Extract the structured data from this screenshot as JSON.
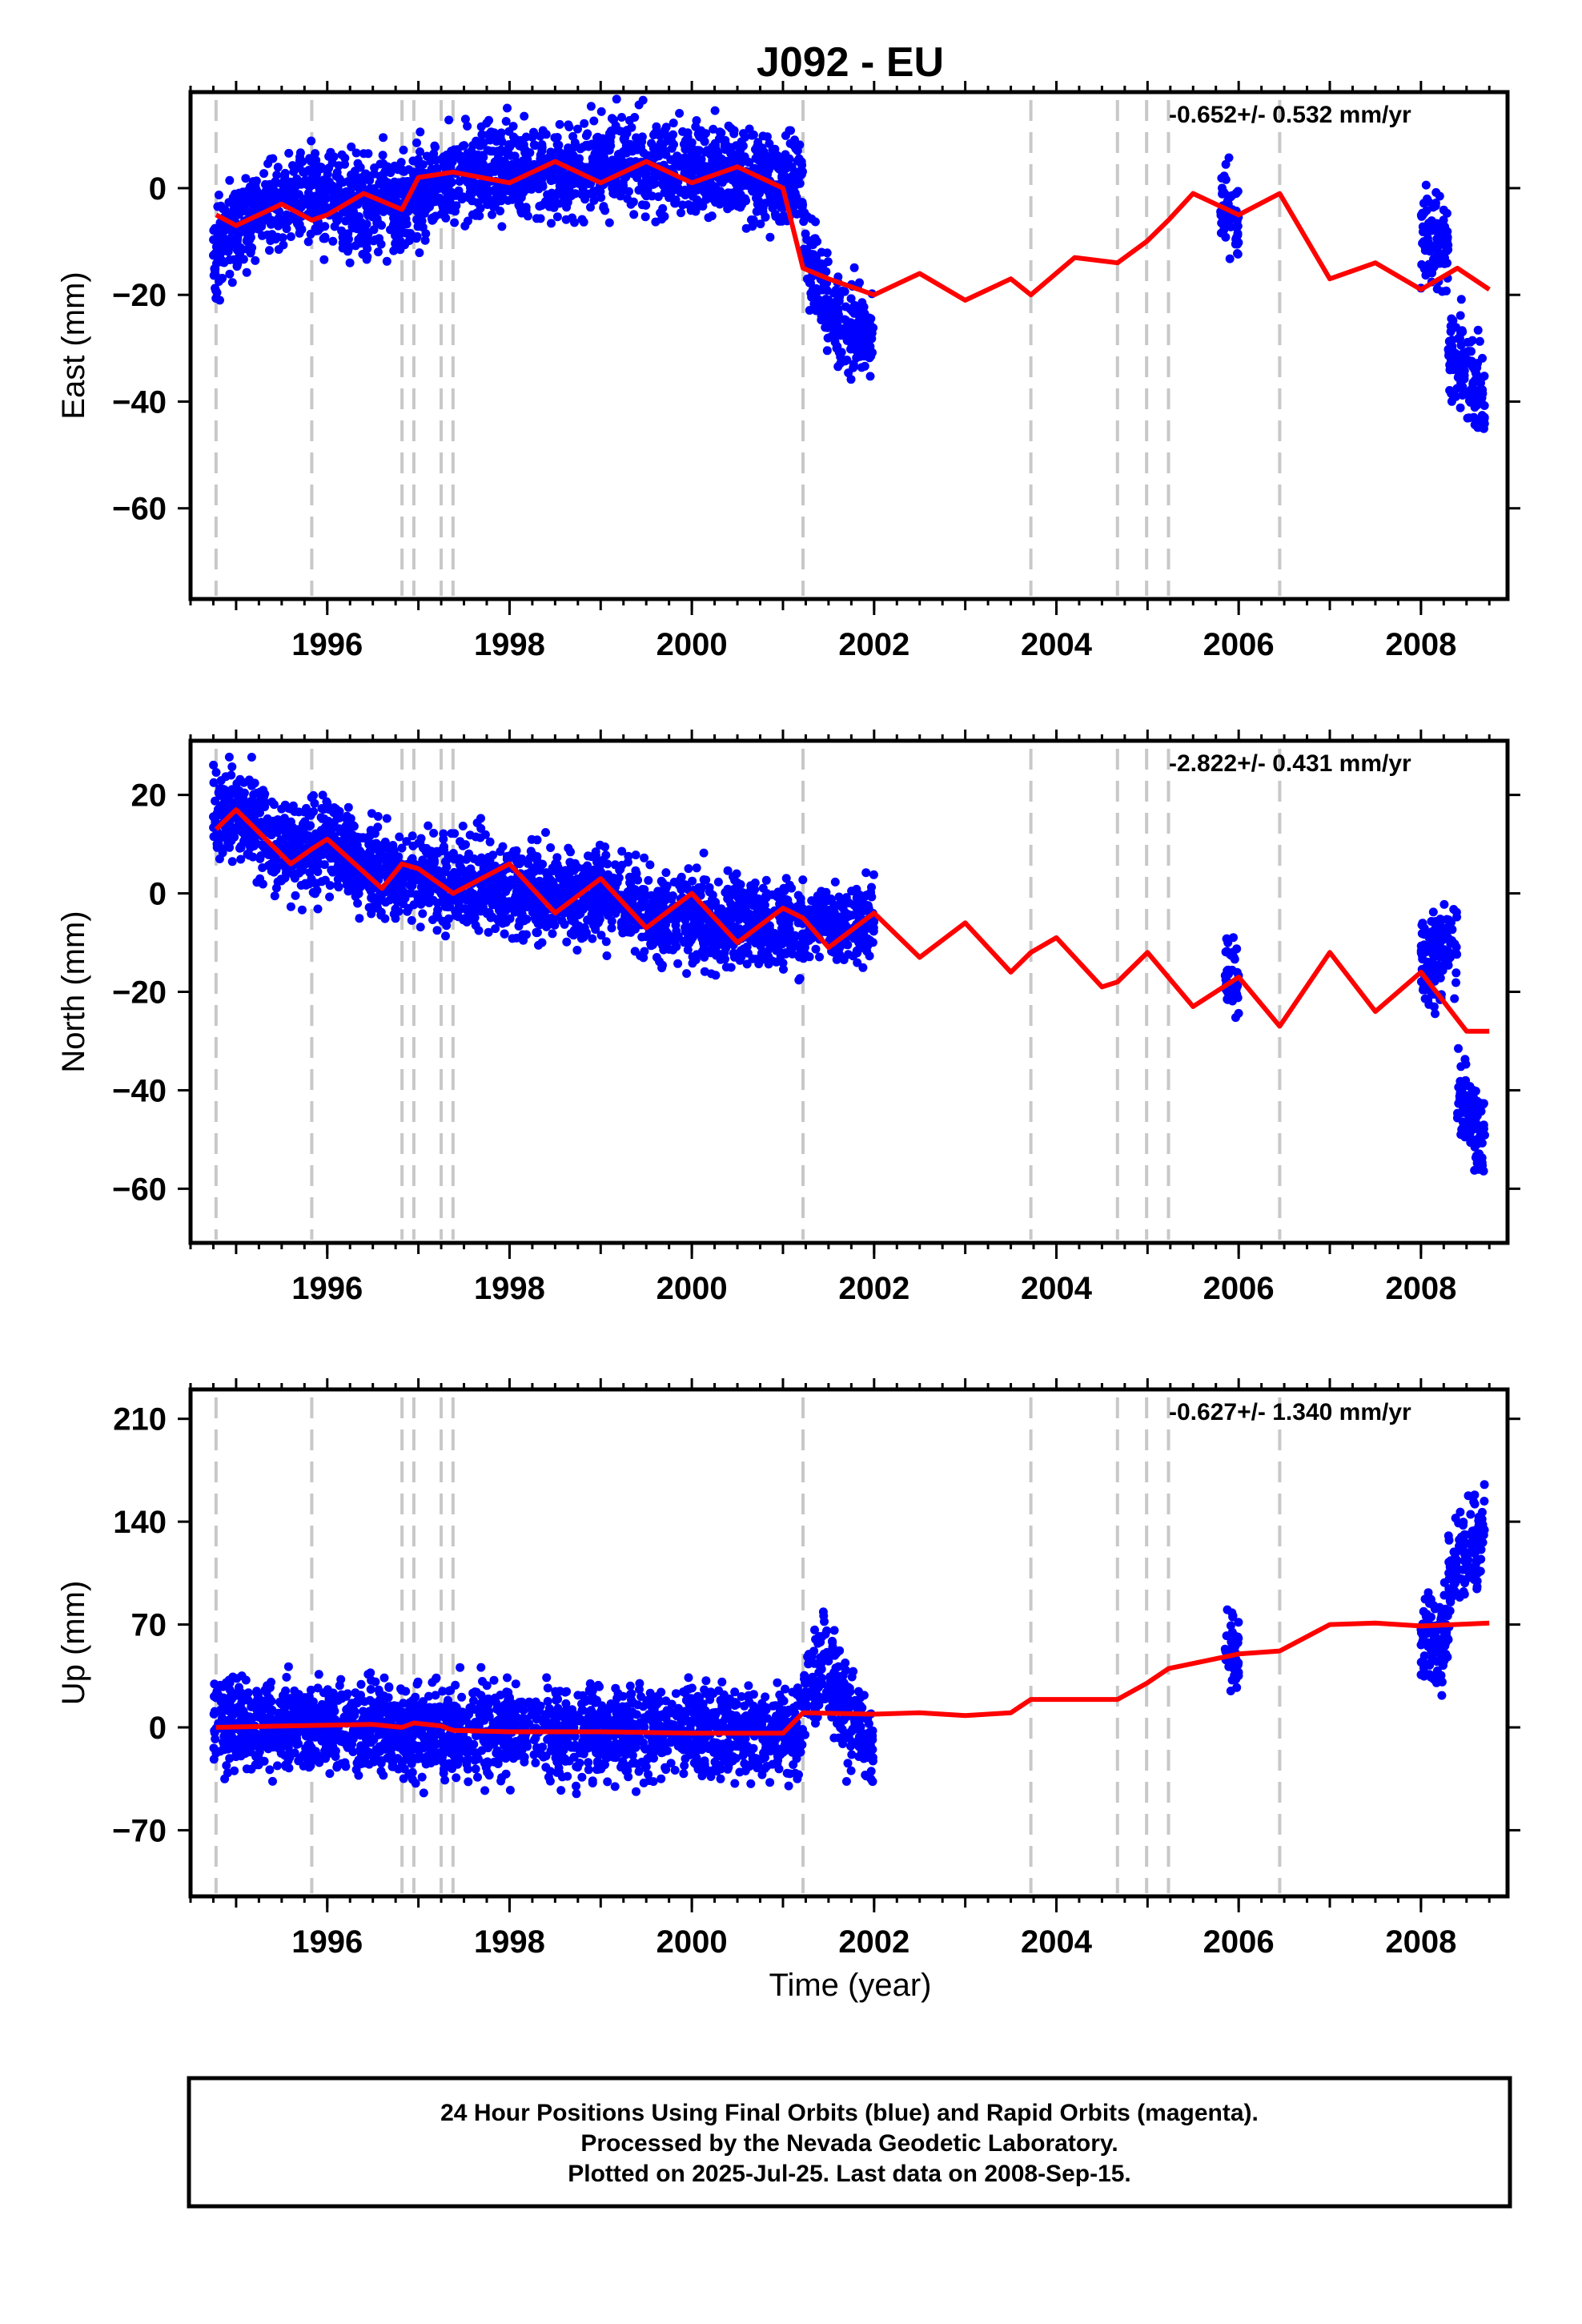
{
  "title": "J092 - EU",
  "xlabel": "Time (year)",
  "footer": [
    "24 Hour Positions Using Final Orbits (blue) and Rapid Orbits (magenta).",
    "Processed by the Nevada Geodetic Laboratory.",
    "Plotted on 2025-Jul-25. Last data on 2008-Sep-15."
  ],
  "colors": {
    "data": "#0000ff",
    "model": "#ff0000",
    "offset_lines": "#c8c8c8"
  },
  "chart_data": [
    {
      "type": "scatter",
      "ylabel": "East (mm)",
      "rate_label": "-0.652+/- 0.532 mm/yr",
      "xlim": [
        1994.5,
        2008.95
      ],
      "ylim": [
        -77,
        18
      ],
      "x_ticks": [
        1996,
        1998,
        2000,
        2002,
        2004,
        2006,
        2008
      ],
      "y_ticks": [
        0,
        -20,
        -40,
        -60
      ],
      "offset_epochs": [
        1994.78,
        1995.83,
        1996.82,
        1996.95,
        1997.25,
        1997.38,
        2001.22,
        2003.72,
        2004.67,
        2004.99,
        2005.23,
        2006.45
      ],
      "data_segments": [
        {
          "x": [
            1994.75,
            1995.25,
            1995.8,
            1996.4,
            1996.8,
            1997.3,
            1998.0,
            1998.7,
            1999.3,
            1999.8,
            2000.4,
            2001.0,
            2001.22
          ],
          "y": [
            -12,
            -4,
            -2,
            -3,
            -3,
            2,
            3,
            3,
            5,
            4,
            4,
            1,
            1
          ]
        },
        {
          "x": [
            2001.22,
            2001.5,
            2001.75,
            2002.0
          ],
          "y": [
            -10,
            -22,
            -27,
            -28
          ]
        },
        {
          "x": [
            2005.8,
            2006.0
          ],
          "y": [
            -4,
            -6
          ]
        },
        {
          "x": [
            2008.0,
            2008.3
          ],
          "y": [
            -10,
            -10
          ]
        },
        {
          "x": [
            2008.3,
            2008.7
          ],
          "y": [
            -30,
            -40
          ]
        }
      ],
      "model": {
        "x": [
          1994.78,
          1995.0,
          1995.5,
          1995.83,
          1996.0,
          1996.4,
          1996.82,
          1997.0,
          1997.38,
          1998.0,
          1998.5,
          1999.0,
          1999.5,
          2000.0,
          2000.5,
          2001.0,
          2001.22,
          2001.5,
          2002.0,
          2002.5,
          2003.0,
          2003.5,
          2003.72,
          2004.2,
          2004.67,
          2004.99,
          2005.23,
          2005.5,
          2006.0,
          2006.45,
          2007.0,
          2007.5,
          2008.0,
          2008.4,
          2008.75
        ],
        "y": [
          -5,
          -7,
          -3,
          -6,
          -5,
          -1,
          -4,
          2,
          3,
          1,
          5,
          1,
          5,
          1,
          4,
          0,
          -15,
          -17,
          -20,
          -16,
          -21,
          -17,
          -20,
          -13,
          -14,
          -10,
          -6,
          -1,
          -5,
          -1,
          -17,
          -14,
          -19,
          -15,
          -19
        ]
      }
    },
    {
      "type": "scatter",
      "ylabel": "North (mm)",
      "rate_label": "-2.822+/- 0.431 mm/yr",
      "xlim": [
        1994.5,
        2008.95
      ],
      "ylim": [
        -71,
        31
      ],
      "x_ticks": [
        1996,
        1998,
        2000,
        2002,
        2004,
        2006,
        2008
      ],
      "y_ticks": [
        20,
        0,
        -20,
        -40,
        -60
      ],
      "offset_epochs": [
        1994.78,
        1995.83,
        1996.82,
        1996.95,
        1997.25,
        1997.38,
        2001.22,
        2003.72,
        2004.67,
        2004.99,
        2005.23,
        2006.45
      ],
      "data_segments": [
        {
          "x": [
            1994.75,
            1995.2,
            1995.6,
            1996.0,
            1996.6,
            1997.2,
            1997.8,
            1998.4,
            1999.0,
            1999.6,
            2000.2,
            2000.8,
            2001.4,
            2002.0
          ],
          "y": [
            18,
            14,
            8,
            10,
            4,
            3,
            2,
            0,
            0,
            -4,
            -6,
            -6,
            -7,
            -6
          ]
        },
        {
          "x": [
            2005.85,
            2006.0
          ],
          "y": [
            -16,
            -18
          ]
        },
        {
          "x": [
            2008.0,
            2008.4
          ],
          "y": [
            -15,
            -10
          ]
        },
        {
          "x": [
            2008.4,
            2008.7
          ],
          "y": [
            -40,
            -50
          ]
        }
      ],
      "model": {
        "x": [
          1994.78,
          1995.0,
          1995.6,
          1995.83,
          1996.0,
          1996.6,
          1996.82,
          1997.0,
          1997.38,
          1998.0,
          1998.5,
          1999.0,
          1999.5,
          2000.0,
          2000.5,
          2001.0,
          2001.22,
          2001.5,
          2002.0,
          2002.5,
          2003.0,
          2003.5,
          2003.72,
          2004.0,
          2004.5,
          2004.67,
          2005.0,
          2005.5,
          2006.0,
          2006.45,
          2007.0,
          2007.5,
          2008.0,
          2008.5,
          2008.75
        ],
        "y": [
          13,
          17,
          6,
          9,
          11,
          1,
          6,
          5,
          0,
          6,
          -4,
          3,
          -7,
          0,
          -10,
          -3,
          -5,
          -11,
          -4,
          -13,
          -6,
          -16,
          -12,
          -9,
          -19,
          -18,
          -12,
          -23,
          -17,
          -27,
          -12,
          -24,
          -16,
          -28,
          -28
        ]
      }
    },
    {
      "type": "scatter",
      "ylabel": "Up (mm)",
      "rate_label": "-0.627+/- 1.340 mm/yr",
      "xlim": [
        1994.5,
        2008.95
      ],
      "ylim": [
        -115,
        230
      ],
      "x_ticks": [
        1996,
        1998,
        2000,
        2002,
        2004,
        2006,
        2008
      ],
      "y_ticks": [
        210,
        140,
        70,
        0,
        -70
      ],
      "offset_epochs": [
        1994.78,
        1995.83,
        1996.82,
        1996.95,
        1997.25,
        1997.38,
        2001.22,
        2003.72,
        2004.67,
        2004.99,
        2005.23,
        2006.45
      ],
      "data_segments": [
        {
          "x": [
            1994.75,
            1995.5,
            1996.2,
            1997.0,
            1998.0,
            1999.0,
            2000.0,
            2001.0,
            2001.22
          ],
          "y": [
            2,
            0,
            2,
            0,
            -2,
            -3,
            -3,
            -4,
            -4
          ]
        },
        {
          "x": [
            2001.22,
            2001.45,
            2001.7,
            2002.0
          ],
          "y": [
            25,
            45,
            10,
            -10
          ]
        },
        {
          "x": [
            2005.85,
            2006.0
          ],
          "y": [
            50,
            50
          ]
        },
        {
          "x": [
            2008.0,
            2008.3
          ],
          "y": [
            55,
            60
          ]
        },
        {
          "x": [
            2008.3,
            2008.7
          ],
          "y": [
            110,
            130
          ]
        }
      ],
      "model": {
        "x": [
          1994.78,
          1995.5,
          1996.5,
          1996.82,
          1996.95,
          1997.25,
          1997.38,
          1998.0,
          1999.0,
          2000.0,
          2001.0,
          2001.22,
          2002.0,
          2002.5,
          2003.0,
          2003.5,
          2003.72,
          2004.67,
          2004.99,
          2005.23,
          2006.0,
          2006.45,
          2007.0,
          2007.5,
          2008.0,
          2008.75
        ],
        "y": [
          0,
          1,
          2,
          0,
          3,
          1,
          -2,
          -3,
          -3,
          -4,
          -4,
          10,
          9,
          10,
          8,
          10,
          19,
          19,
          30,
          40,
          50,
          52,
          70,
          71,
          69,
          71
        ]
      }
    }
  ]
}
